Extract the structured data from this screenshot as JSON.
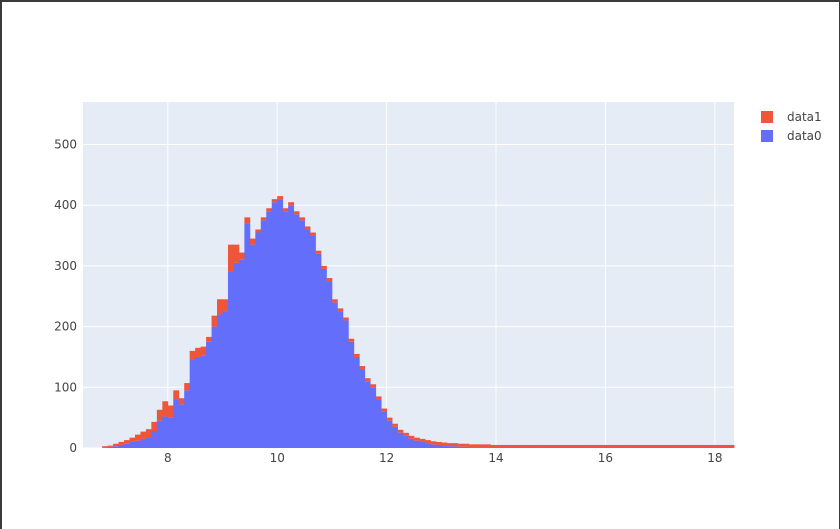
{
  "chart_data": {
    "type": "bar",
    "barmode": "stack",
    "x_range": [
      6.45,
      18.35
    ],
    "y_range": [
      0,
      570
    ],
    "x_ticks": [
      "8",
      "10",
      "12",
      "14",
      "16",
      "18"
    ],
    "y_ticks": [
      "0",
      "100",
      "200",
      "300",
      "400",
      "500"
    ],
    "grid": true,
    "legend_position": "top-right",
    "legend": [
      {
        "name": "data1",
        "color": "#EF553B"
      },
      {
        "name": "data0",
        "color": "#636EFA"
      }
    ],
    "bin_width": 0.1,
    "bin_start": 6.8,
    "series": [
      {
        "name": "data0",
        "color": "#636EFA",
        "values": [
          1,
          2,
          3,
          5,
          7,
          10,
          12,
          15,
          18,
          28,
          45,
          52,
          50,
          80,
          72,
          95,
          145,
          150,
          152,
          175,
          200,
          220,
          225,
          290,
          305,
          310,
          370,
          335,
          355,
          375,
          390,
          405,
          410,
          390,
          400,
          385,
          375,
          360,
          350,
          320,
          295,
          275,
          240,
          225,
          210,
          175,
          150,
          130,
          110,
          100,
          80,
          60,
          45,
          35,
          25,
          20,
          15,
          12,
          10,
          8,
          6,
          5,
          4,
          3,
          3,
          2,
          2,
          1,
          1,
          1,
          1,
          0,
          0,
          0,
          0,
          0,
          0,
          0,
          0,
          0,
          0,
          0,
          0,
          0,
          0,
          0,
          0,
          0,
          0,
          0,
          0,
          0,
          0,
          0,
          0,
          0,
          0,
          0,
          0,
          0,
          0,
          0,
          0,
          0,
          0,
          0,
          0,
          0,
          0,
          0,
          0,
          0,
          0,
          0,
          0
        ]
      },
      {
        "name": "data1",
        "color": "#EF553B",
        "values": [
          2,
          2,
          4,
          5,
          6,
          7,
          10,
          12,
          13,
          15,
          18,
          25,
          20,
          15,
          10,
          12,
          15,
          15,
          15,
          8,
          18,
          25,
          20,
          45,
          30,
          12,
          10,
          10,
          5,
          5,
          5,
          5,
          5,
          5,
          5,
          5,
          5,
          5,
          5,
          5,
          5,
          5,
          5,
          5,
          5,
          5,
          5,
          5,
          5,
          5,
          5,
          5,
          5,
          5,
          5,
          5,
          5,
          5,
          5,
          5,
          5,
          5,
          5,
          5,
          5,
          5,
          5,
          5,
          5,
          5,
          5,
          5,
          5,
          5,
          5,
          5,
          5,
          5,
          5,
          5,
          5,
          5,
          5,
          5,
          5,
          5,
          5,
          5,
          5,
          5,
          5,
          5,
          5,
          5,
          5,
          5,
          5,
          5,
          5,
          5,
          5,
          5,
          5,
          5,
          5,
          5,
          5,
          5,
          5,
          5,
          5,
          5,
          5,
          5,
          5,
          5
        ]
      }
    ]
  }
}
